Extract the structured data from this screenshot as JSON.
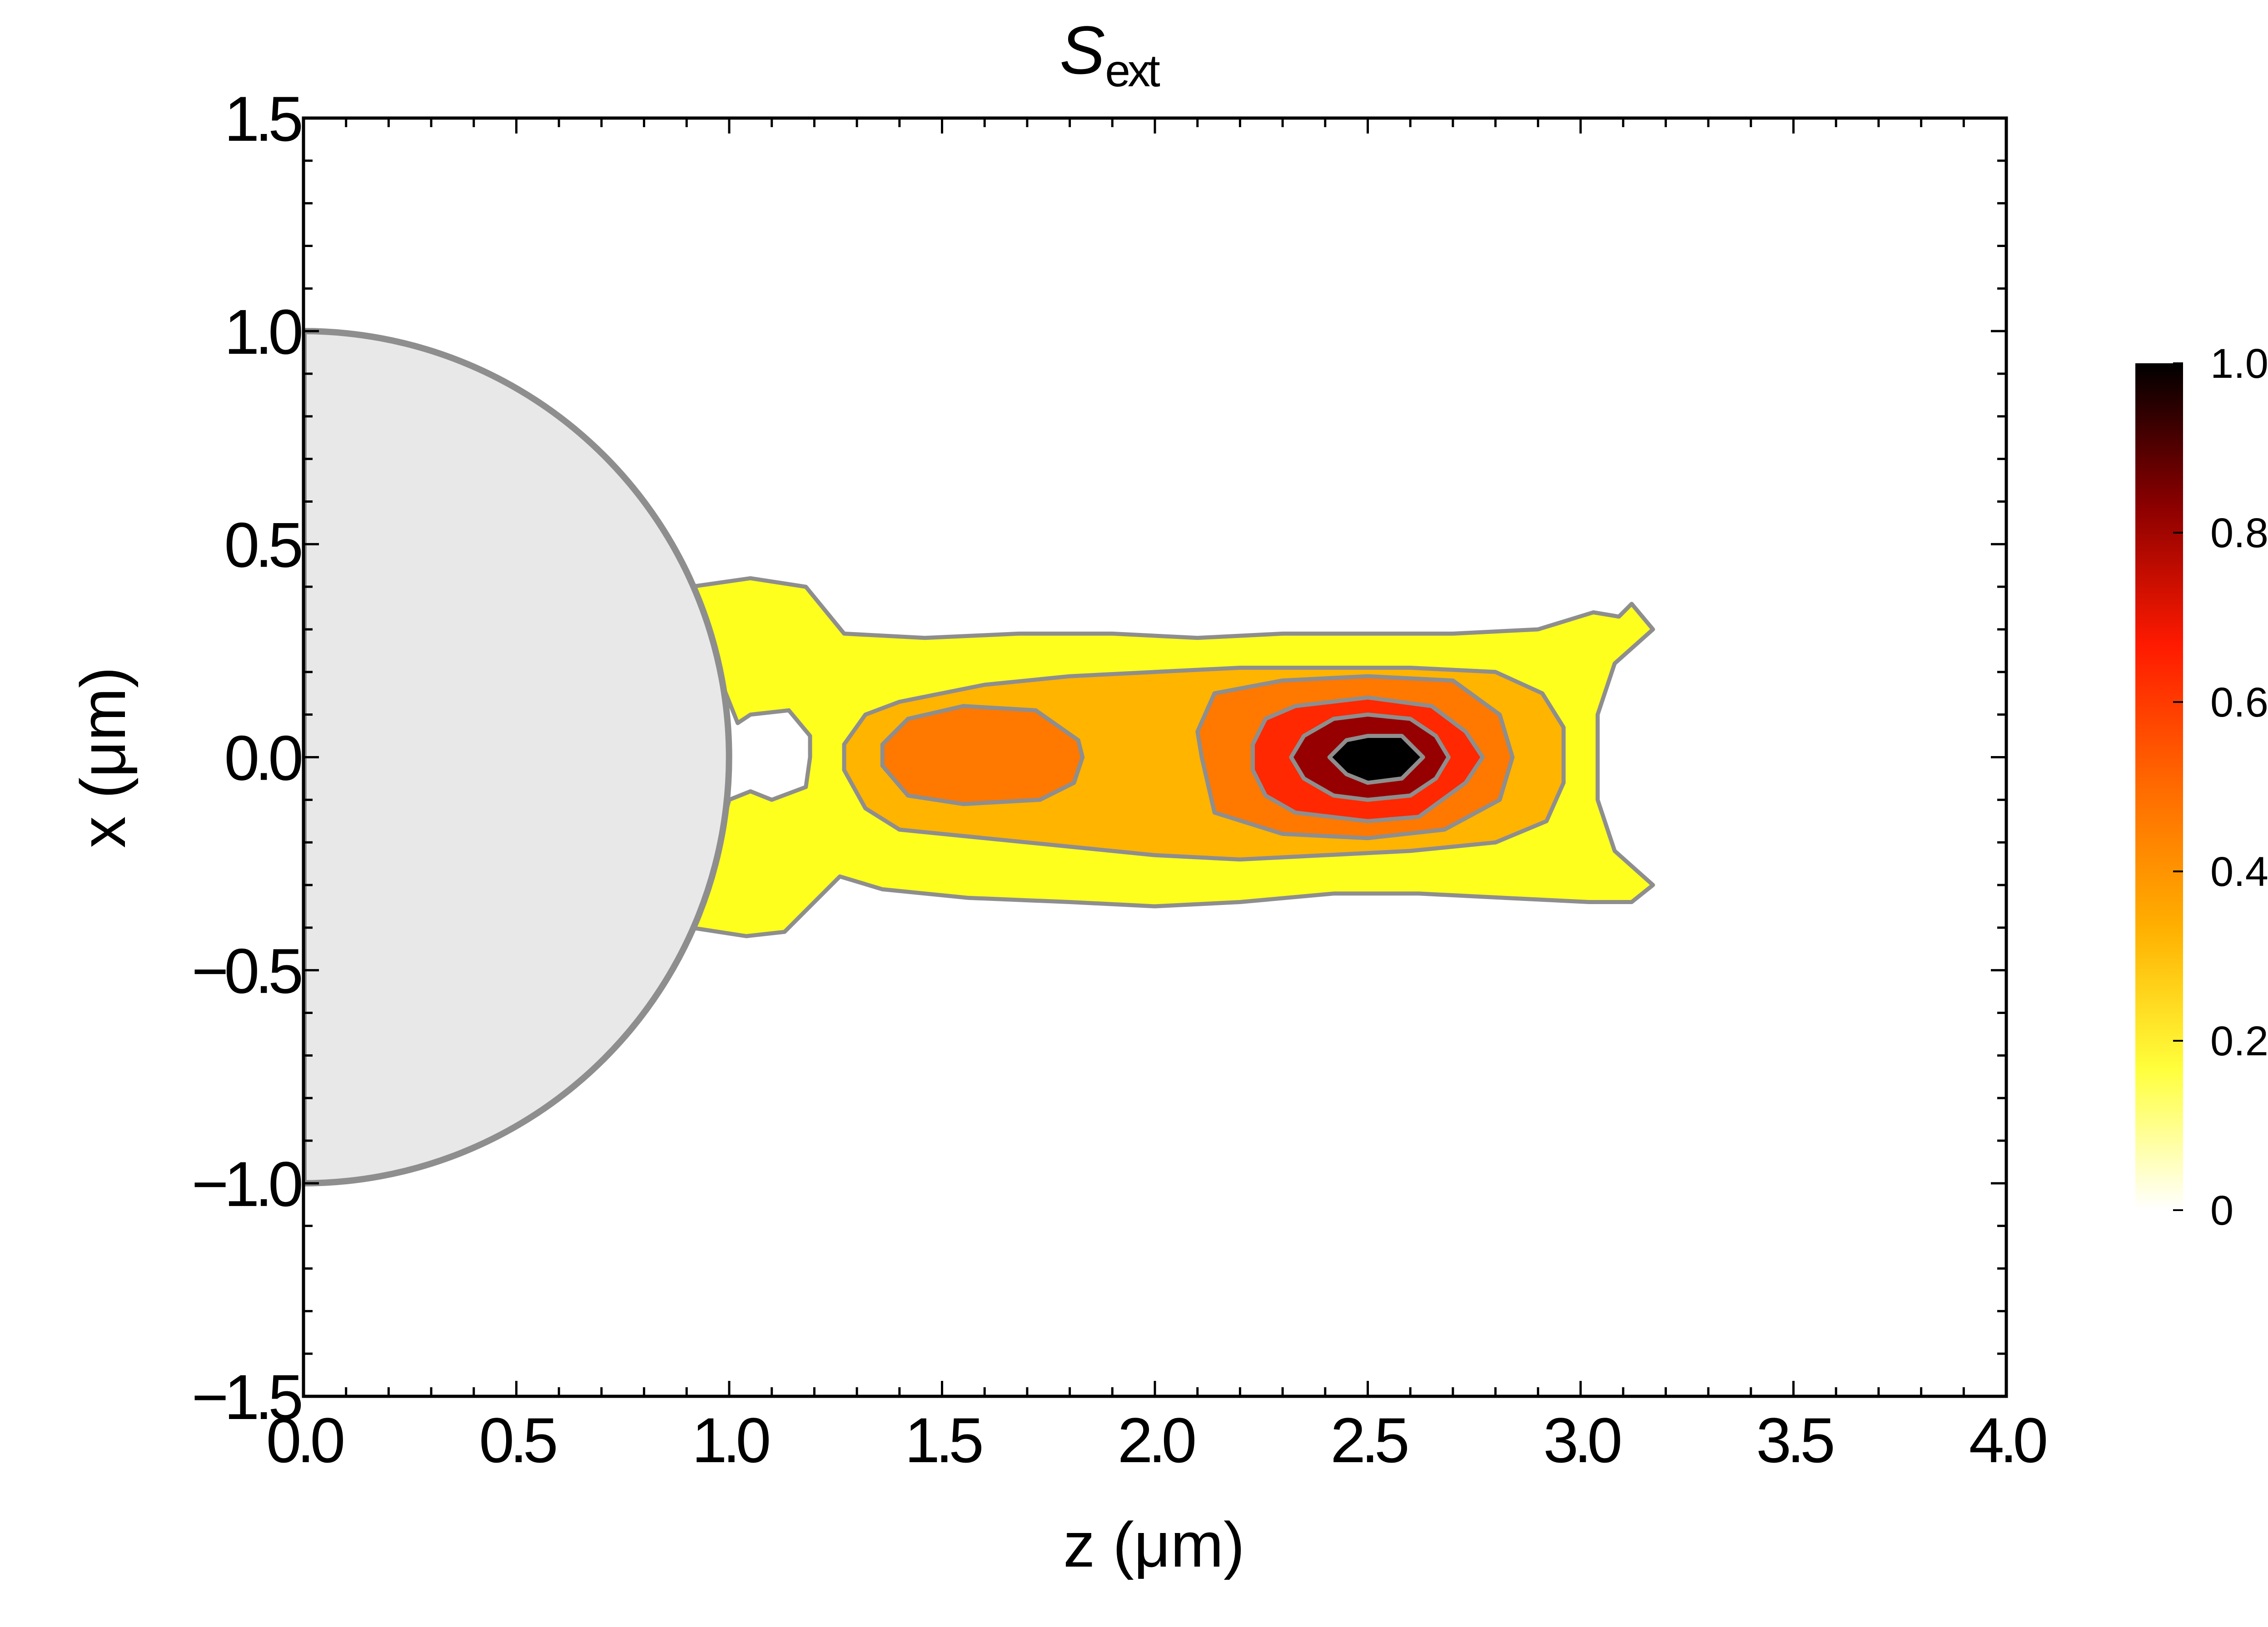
{
  "chart_data": {
    "type": "heatmap",
    "title_main": "S",
    "title_sub": "ext",
    "xlabel": "z (μm)",
    "ylabel": "x (μm)",
    "xlim": [
      0.0,
      4.0
    ],
    "ylim": [
      -1.5,
      1.5
    ],
    "x_ticks": [
      "0.0",
      "0.5",
      "1.0",
      "1.5",
      "2.0",
      "2.5",
      "3.0",
      "3.5",
      "4.0"
    ],
    "y_ticks": [
      "−1.5",
      "−1.0",
      "−0.5",
      "0.0",
      "0.5",
      "1.0",
      "1.5"
    ],
    "colorbar": {
      "range": [
        0,
        1.0
      ],
      "ticks": [
        "0",
        "0.2",
        "0.4",
        "0.6",
        "0.8",
        "1.0"
      ],
      "stops": [
        "#ffffff",
        "#ffff3c",
        "#ffb000",
        "#ff6a00",
        "#ff1a00",
        "#8a0000",
        "#000000"
      ]
    },
    "sphere": {
      "center_z": 0.0,
      "center_x": 0.0,
      "radius": 1.0,
      "fill": "#e8e8e8",
      "stroke": "#8e8e8e"
    },
    "contour_levels": [
      {
        "level": 0.25,
        "fill": "#ffff1e",
        "points": [
          [
            0.91,
            0.4
          ],
          [
            1.05,
            0.42
          ],
          [
            1.18,
            0.4
          ],
          [
            1.27,
            0.29
          ],
          [
            1.46,
            0.28
          ],
          [
            1.68,
            0.29
          ],
          [
            1.9,
            0.29
          ],
          [
            2.1,
            0.28
          ],
          [
            2.3,
            0.29
          ],
          [
            2.5,
            0.29
          ],
          [
            2.7,
            0.29
          ],
          [
            2.9,
            0.3
          ],
          [
            3.03,
            0.34
          ],
          [
            3.09,
            0.33
          ],
          [
            3.12,
            0.36
          ],
          [
            3.17,
            0.3
          ],
          [
            3.08,
            0.22
          ],
          [
            3.04,
            0.1
          ],
          [
            3.04,
            0.0
          ],
          [
            3.04,
            -0.1
          ],
          [
            3.08,
            -0.22
          ],
          [
            3.17,
            -0.3
          ],
          [
            3.12,
            -0.34
          ],
          [
            3.02,
            -0.34
          ],
          [
            2.82,
            -0.33
          ],
          [
            2.62,
            -0.32
          ],
          [
            2.42,
            -0.32
          ],
          [
            2.2,
            -0.34
          ],
          [
            2.0,
            -0.35
          ],
          [
            1.8,
            -0.34
          ],
          [
            1.56,
            -0.33
          ],
          [
            1.36,
            -0.31
          ],
          [
            1.26,
            -0.28
          ],
          [
            1.13,
            -0.41
          ],
          [
            1.04,
            -0.42
          ],
          [
            0.91,
            -0.4
          ],
          [
            0.96,
            -0.25
          ],
          [
            1.0,
            -0.1
          ],
          [
            1.05,
            -0.08
          ],
          [
            1.1,
            -0.1
          ],
          [
            1.18,
            -0.07
          ],
          [
            1.19,
            0.0
          ],
          [
            1.19,
            0.05
          ],
          [
            1.14,
            0.11
          ],
          [
            1.05,
            0.1
          ],
          [
            1.02,
            0.08
          ],
          [
            0.98,
            0.18
          ],
          [
            0.94,
            0.3
          ]
        ]
      },
      {
        "level": 0.4,
        "fill": "#ffb400",
        "points": [
          [
            1.27,
            0.03
          ],
          [
            1.32,
            0.1
          ],
          [
            1.4,
            0.13
          ],
          [
            1.6,
            0.17
          ],
          [
            1.8,
            0.19
          ],
          [
            2.0,
            0.2
          ],
          [
            2.2,
            0.21
          ],
          [
            2.4,
            0.21
          ],
          [
            2.6,
            0.21
          ],
          [
            2.8,
            0.2
          ],
          [
            2.91,
            0.15
          ],
          [
            2.96,
            0.07
          ],
          [
            2.96,
            0.0
          ],
          [
            2.96,
            -0.06
          ],
          [
            2.92,
            -0.15
          ],
          [
            2.8,
            -0.2
          ],
          [
            2.6,
            -0.22
          ],
          [
            2.4,
            -0.23
          ],
          [
            2.2,
            -0.24
          ],
          [
            2.0,
            -0.23
          ],
          [
            1.8,
            -0.21
          ],
          [
            1.6,
            -0.19
          ],
          [
            1.4,
            -0.17
          ],
          [
            1.32,
            -0.12
          ],
          [
            1.27,
            -0.03
          ]
        ]
      },
      {
        "level": 0.5,
        "fill": "#ff7800",
        "points": [
          [
            1.36,
            0.03
          ],
          [
            1.42,
            0.09
          ],
          [
            1.55,
            0.12
          ],
          [
            1.72,
            0.11
          ],
          [
            1.82,
            0.04
          ],
          [
            1.83,
            0.0
          ],
          [
            1.81,
            -0.06
          ],
          [
            1.73,
            -0.1
          ],
          [
            1.55,
            -0.11
          ],
          [
            1.42,
            -0.09
          ],
          [
            1.36,
            -0.02
          ]
        ]
      },
      {
        "level": 0.55,
        "fill": "#ff7800",
        "points": [
          [
            2.1,
            0.06
          ],
          [
            2.14,
            0.15
          ],
          [
            2.3,
            0.18
          ],
          [
            2.5,
            0.19
          ],
          [
            2.7,
            0.18
          ],
          [
            2.81,
            0.1
          ],
          [
            2.84,
            0.0
          ],
          [
            2.81,
            -0.1
          ],
          [
            2.68,
            -0.17
          ],
          [
            2.5,
            -0.19
          ],
          [
            2.3,
            -0.18
          ],
          [
            2.14,
            -0.13
          ],
          [
            2.11,
            0.0
          ]
        ]
      },
      {
        "level": 0.7,
        "fill": "#ff2800",
        "points": [
          [
            2.23,
            0.03
          ],
          [
            2.26,
            0.09
          ],
          [
            2.33,
            0.12
          ],
          [
            2.5,
            0.14
          ],
          [
            2.65,
            0.12
          ],
          [
            2.73,
            0.06
          ],
          [
            2.77,
            0.0
          ],
          [
            2.73,
            -0.06
          ],
          [
            2.62,
            -0.14
          ],
          [
            2.5,
            -0.15
          ],
          [
            2.33,
            -0.13
          ],
          [
            2.26,
            -0.09
          ],
          [
            2.23,
            -0.03
          ]
        ]
      },
      {
        "level": 0.85,
        "fill": "#960000",
        "points": [
          [
            2.32,
            0.0
          ],
          [
            2.35,
            0.05
          ],
          [
            2.42,
            0.09
          ],
          [
            2.5,
            0.1
          ],
          [
            2.6,
            0.09
          ],
          [
            2.66,
            0.05
          ],
          [
            2.69,
            0.0
          ],
          [
            2.66,
            -0.05
          ],
          [
            2.6,
            -0.09
          ],
          [
            2.5,
            -0.1
          ],
          [
            2.42,
            -0.09
          ],
          [
            2.35,
            -0.05
          ]
        ]
      },
      {
        "level": 0.95,
        "fill": "#000000",
        "points": [
          [
            2.41,
            0.0
          ],
          [
            2.45,
            0.04
          ],
          [
            2.5,
            0.05
          ],
          [
            2.58,
            0.05
          ],
          [
            2.63,
            0.0
          ],
          [
            2.58,
            -0.05
          ],
          [
            2.5,
            -0.06
          ],
          [
            2.45,
            -0.04
          ]
        ]
      }
    ]
  }
}
